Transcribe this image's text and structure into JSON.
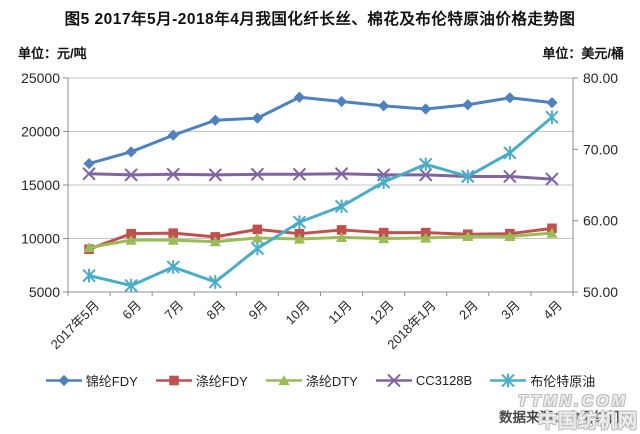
{
  "title": "图5  2017年5月-2018年4月我国化纤长丝、棉花及布伦特原油价格走势图",
  "unit_left": "单位：元/吨",
  "unit_right": "单位：美元/桶",
  "source": "数据来源：中国纺机网",
  "watermark": {
    "line1": "TTMN.COM",
    "line2": "中国纺机网"
  },
  "colors": {
    "blue": "#4F81BD",
    "red": "#C0504D",
    "green": "#9BBB59",
    "purple": "#8064A2",
    "cyan": "#4BACC6",
    "grid": "#c3c3c3",
    "axis": "#8c8c8c"
  },
  "chart_data": {
    "type": "line",
    "title": "2017年5月-2018年4月我国化纤长丝、棉花及布伦特原油价格走势图",
    "categories": [
      "2017年5月",
      "6月",
      "7月",
      "8月",
      "9月",
      "10月",
      "11月",
      "12月",
      "2018年1月",
      "2月",
      "3月",
      "4月"
    ],
    "grid": true,
    "legend_position": "bottom",
    "y_left": {
      "unit": "元/吨",
      "min": 5000,
      "max": 25000,
      "ticks": [
        "25000",
        "20000",
        "15000",
        "10000",
        "5000"
      ]
    },
    "y_right": {
      "unit": "美元/桶",
      "min": 50,
      "max": 80,
      "ticks": [
        "80.00",
        "70.00",
        "60.00",
        "50.00"
      ]
    },
    "series": [
      {
        "name": "锦纶FDY",
        "axis": "left",
        "color": "#4F81BD",
        "marker": "diamond",
        "values": [
          17000,
          18100,
          19650,
          21050,
          21250,
          23200,
          22800,
          22400,
          22100,
          22500,
          23150,
          22700
        ]
      },
      {
        "name": "涤纶FDY",
        "axis": "left",
        "color": "#C0504D",
        "marker": "square",
        "values": [
          9000,
          10450,
          10500,
          10150,
          10850,
          10450,
          10800,
          10550,
          10550,
          10400,
          10450,
          10950
        ]
      },
      {
        "name": "涤纶DTY",
        "axis": "left",
        "color": "#9BBB59",
        "marker": "triangle",
        "values": [
          9150,
          9850,
          9850,
          9700,
          10050,
          9950,
          10100,
          10000,
          10050,
          10200,
          10200,
          10500
        ]
      },
      {
        "name": "CC3128B",
        "axis": "left",
        "color": "#8064A2",
        "marker": "x",
        "values": [
          16050,
          15950,
          16000,
          15950,
          16000,
          16000,
          16050,
          15950,
          15950,
          15800,
          15800,
          15550
        ]
      },
      {
        "name": "布伦特原油",
        "axis": "right",
        "color": "#4BACC6",
        "marker": "star",
        "values": [
          52.3,
          50.9,
          53.5,
          51.4,
          56.1,
          59.8,
          62.0,
          65.4,
          67.9,
          66.2,
          69.5,
          74.5
        ]
      }
    ]
  }
}
